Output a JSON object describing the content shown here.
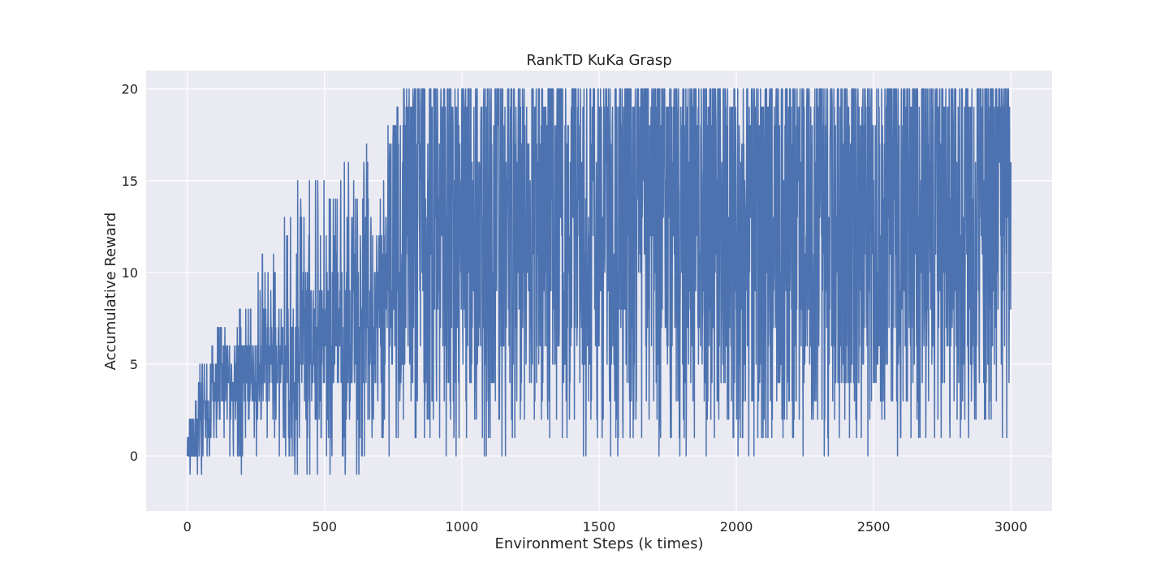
{
  "chart_data": {
    "type": "line",
    "title": "RankTD KuKa Grasp",
    "xlabel": "Environment Steps (k times)",
    "ylabel": "Accumulative Reward",
    "xlim": [
      -150,
      3150
    ],
    "ylim": [
      -3,
      21
    ],
    "xticks": [
      0,
      500,
      1000,
      1500,
      2000,
      2500,
      3000
    ],
    "yticks": [
      0,
      5,
      10,
      15,
      20
    ],
    "grid": true,
    "background": "#eaeaf2",
    "grid_color": "#ffffff",
    "series": [
      {
        "color": "#4c72b0",
        "x_range": [
          0,
          3000
        ],
        "n_points": 3001,
        "envelope": [
          {
            "x": 0,
            "min": -2,
            "max": 1
          },
          {
            "x": 20,
            "min": -2,
            "max": 4
          },
          {
            "x": 60,
            "min": -1,
            "max": 6
          },
          {
            "x": 100,
            "min": 1,
            "max": 7
          },
          {
            "x": 200,
            "min": -1,
            "max": 9
          },
          {
            "x": 300,
            "min": 0,
            "max": 12
          },
          {
            "x": 400,
            "min": -1,
            "max": 16
          },
          {
            "x": 500,
            "min": -1,
            "max": 15
          },
          {
            "x": 600,
            "min": -1,
            "max": 16
          },
          {
            "x": 700,
            "min": 0,
            "max": 17
          },
          {
            "x": 790,
            "min": 1,
            "max": 20
          },
          {
            "x": 1000,
            "min": 0,
            "max": 20
          },
          {
            "x": 1500,
            "min": 0,
            "max": 20
          },
          {
            "x": 2000,
            "min": 0,
            "max": 20
          },
          {
            "x": 2500,
            "min": 0,
            "max": 20
          },
          {
            "x": 3000,
            "min": 1,
            "max": 20
          }
        ],
        "typical_band": [
          {
            "x": 0,
            "low": -1,
            "high": 1
          },
          {
            "x": 100,
            "low": 2,
            "high": 5
          },
          {
            "x": 300,
            "low": 3,
            "high": 7
          },
          {
            "x": 500,
            "low": 3,
            "high": 10
          },
          {
            "x": 700,
            "low": 4,
            "high": 13
          },
          {
            "x": 800,
            "low": 5,
            "high": 19
          },
          {
            "x": 3000,
            "low": 5,
            "high": 19
          }
        ]
      }
    ]
  }
}
